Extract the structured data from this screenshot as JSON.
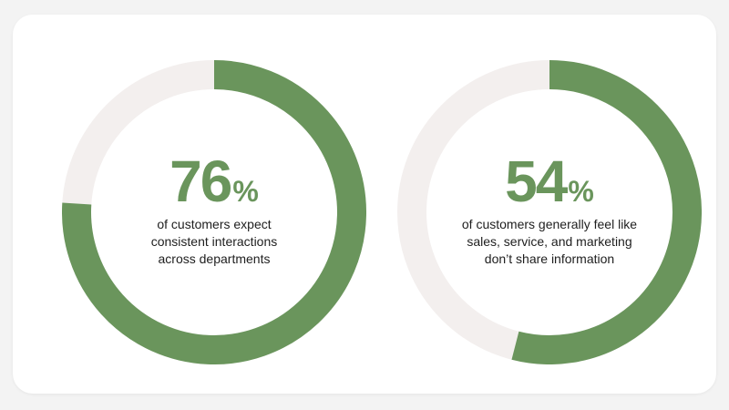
{
  "colors": {
    "accent": "#6a955c",
    "track": "#f3efee",
    "text": "#1e1e1e"
  },
  "chart_data": [
    {
      "type": "pie",
      "value": 76,
      "unit": "%",
      "caption": [
        "of customers expect",
        "consistent interactions",
        "across departments"
      ]
    },
    {
      "type": "pie",
      "value": 54,
      "unit": "%",
      "caption": [
        "of customers generally feel like",
        "sales, service, and marketing",
        "don’t share information"
      ]
    }
  ]
}
